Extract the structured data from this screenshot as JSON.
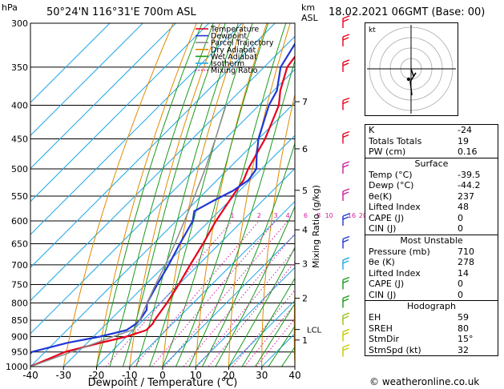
{
  "header": {
    "location": "50°24'N  116°31'E  700m  ASL",
    "datetime": "18.02.2021  06GMT  (Base: 00)",
    "hpa_label": "hPa",
    "km_label": "km",
    "asl_label": "ASL"
  },
  "chart_data": {
    "type": "line",
    "title": "",
    "xlabel": "Dewpoint / Temperature (°C)",
    "ylabel": "Mixing Ratio (g/kg)",
    "xlim": [
      -40,
      40
    ],
    "ylim": [
      1000,
      300
    ],
    "y_scale": "log-pressure",
    "x_ticks": [
      "-40",
      "-30",
      "-20",
      "-10",
      "0",
      "10",
      "20",
      "30",
      "40"
    ],
    "pressure_ticks": [
      "300",
      "350",
      "400",
      "450",
      "500",
      "550",
      "600",
      "650",
      "700",
      "750",
      "800",
      "850",
      "900",
      "950",
      "1000"
    ],
    "km_ticks": [
      {
        "label": "7",
        "p": 395
      },
      {
        "label": "6",
        "p": 466
      },
      {
        "label": "5",
        "p": 539
      },
      {
        "label": "4",
        "p": 619
      },
      {
        "label": "3",
        "p": 697
      },
      {
        "label": "2",
        "p": 787
      },
      {
        "label": "1",
        "p": 911
      }
    ],
    "lcl": {
      "label": "LCL",
      "p": 878
    },
    "mixing_ratio_labels": [
      "1",
      "2",
      "3",
      "4",
      "6",
      "8",
      "10",
      "16",
      "20",
      "25"
    ],
    "legend": {
      "position": "top-right",
      "items": [
        {
          "name": "Temperature",
          "color": "#e8001c",
          "style": "solid"
        },
        {
          "name": "Dewpoint",
          "color": "#1f36d6",
          "style": "solid"
        },
        {
          "name": "Parcel Trajectory",
          "color": "#8a8a8a",
          "style": "solid"
        },
        {
          "name": "Dry Adiabat",
          "color": "#e08a00",
          "style": "solid"
        },
        {
          "name": "Wet Adiabat",
          "color": "#1a9a1a",
          "style": "solid"
        },
        {
          "name": "Isotherm",
          "color": "#23a8e6",
          "style": "solid"
        },
        {
          "name": "Mixing Ratio",
          "color": "#cc1d9c",
          "style": "dotted"
        }
      ]
    },
    "series": [
      {
        "name": "Temperature",
        "color": "#e8001c",
        "points": [
          [
            1000,
            -40
          ],
          [
            950,
            -34
          ],
          [
            920,
            -26
          ],
          [
            900,
            -20
          ],
          [
            880,
            -16
          ],
          [
            860,
            -16
          ],
          [
            850,
            -16.5
          ],
          [
            800,
            -18
          ],
          [
            750,
            -20
          ],
          [
            700,
            -22.5
          ],
          [
            650,
            -25
          ],
          [
            600,
            -28
          ],
          [
            550,
            -30.5
          ],
          [
            520,
            -32
          ],
          [
            500,
            -34
          ],
          [
            450,
            -38
          ],
          [
            400,
            -44
          ],
          [
            380,
            -48
          ],
          [
            350,
            -53
          ],
          [
            320,
            -55
          ],
          [
            300,
            -57
          ]
        ]
      },
      {
        "name": "Dewpoint",
        "color": "#1f36d6",
        "points": [
          [
            1000,
            -44.2
          ],
          [
            950,
            -44
          ],
          [
            920,
            -36
          ],
          [
            900,
            -28
          ],
          [
            880,
            -22
          ],
          [
            860,
            -21
          ],
          [
            850,
            -21
          ],
          [
            820,
            -22
          ],
          [
            800,
            -24
          ],
          [
            750,
            -26.5
          ],
          [
            700,
            -29
          ],
          [
            650,
            -32
          ],
          [
            600,
            -35
          ],
          [
            580,
            -37.5
          ],
          [
            560,
            -35
          ],
          [
            540,
            -32
          ],
          [
            520,
            -30.5
          ],
          [
            500,
            -31.5
          ],
          [
            480,
            -35
          ],
          [
            450,
            -40
          ],
          [
            400,
            -47
          ],
          [
            380,
            -49
          ],
          [
            350,
            -55
          ],
          [
            320,
            -58
          ],
          [
            300,
            -61
          ]
        ]
      },
      {
        "name": "Parcel Trajectory",
        "color": "#8a8a8a",
        "points": [
          [
            1000,
            -40
          ],
          [
            950,
            -32
          ],
          [
            900,
            -24
          ],
          [
            878,
            -20
          ],
          [
            850,
            -21
          ],
          [
            800,
            -24
          ],
          [
            750,
            -27
          ],
          [
            700,
            -30
          ],
          [
            650,
            -33.5
          ],
          [
            600,
            -37.5
          ],
          [
            550,
            -42
          ],
          [
            500,
            -47
          ],
          [
            450,
            -53
          ],
          [
            400,
            -60
          ]
        ]
      }
    ],
    "wind_barbs": [
      {
        "p": 300,
        "color": "#e8001c"
      },
      {
        "p": 320,
        "color": "#e8001c"
      },
      {
        "p": 350,
        "color": "#e8001c"
      },
      {
        "p": 400,
        "color": "#e8001c"
      },
      {
        "p": 450,
        "color": "#e8001c"
      },
      {
        "p": 500,
        "color": "#cc1d9c"
      },
      {
        "p": 550,
        "color": "#cc1d9c"
      },
      {
        "p": 600,
        "color": "#1f36d6"
      },
      {
        "p": 650,
        "color": "#1f36d6"
      },
      {
        "p": 700,
        "color": "#23a8e6"
      },
      {
        "p": 750,
        "color": "#1a9a1a"
      },
      {
        "p": 800,
        "color": "#1a9a1a"
      },
      {
        "p": 850,
        "color": "#9ac21a"
      },
      {
        "p": 900,
        "color": "#c8c800"
      },
      {
        "p": 950,
        "color": "#c8c800"
      }
    ]
  },
  "hodograph": {
    "unit_label": "kt",
    "rings": [
      10,
      20,
      30,
      40
    ]
  },
  "indices": {
    "rows": [
      {
        "label": "K",
        "value": "-24"
      },
      {
        "label": "Totals Totals",
        "value": "19"
      },
      {
        "label": "PW (cm)",
        "value": "0.16"
      }
    ]
  },
  "surface": {
    "title": "Surface",
    "rows": [
      {
        "label": "Temp (°C)",
        "value": "-39.5"
      },
      {
        "label": "Dewp (°C)",
        "value": "-44.2"
      },
      {
        "label": "θe(K)",
        "value": "237"
      },
      {
        "label": "Lifted Index",
        "value": "48"
      },
      {
        "label": "CAPE (J)",
        "value": "0"
      },
      {
        "label": "CIN (J)",
        "value": "0"
      }
    ]
  },
  "most_unstable": {
    "title": "Most Unstable",
    "rows": [
      {
        "label": "Pressure (mb)",
        "value": "710"
      },
      {
        "label": "θe (K)",
        "value": "278"
      },
      {
        "label": "Lifted Index",
        "value": "14"
      },
      {
        "label": "CAPE (J)",
        "value": "0"
      },
      {
        "label": "CIN (J)",
        "value": "0"
      }
    ]
  },
  "hodograph_table": {
    "title": "Hodograph",
    "rows": [
      {
        "label": "EH",
        "value": "59"
      },
      {
        "label": "SREH",
        "value": "80"
      },
      {
        "label": "StmDir",
        "value": "15°"
      },
      {
        "label": "StmSpd (kt)",
        "value": "32"
      }
    ]
  },
  "footer": {
    "text": "© weatheronline.co.uk"
  }
}
